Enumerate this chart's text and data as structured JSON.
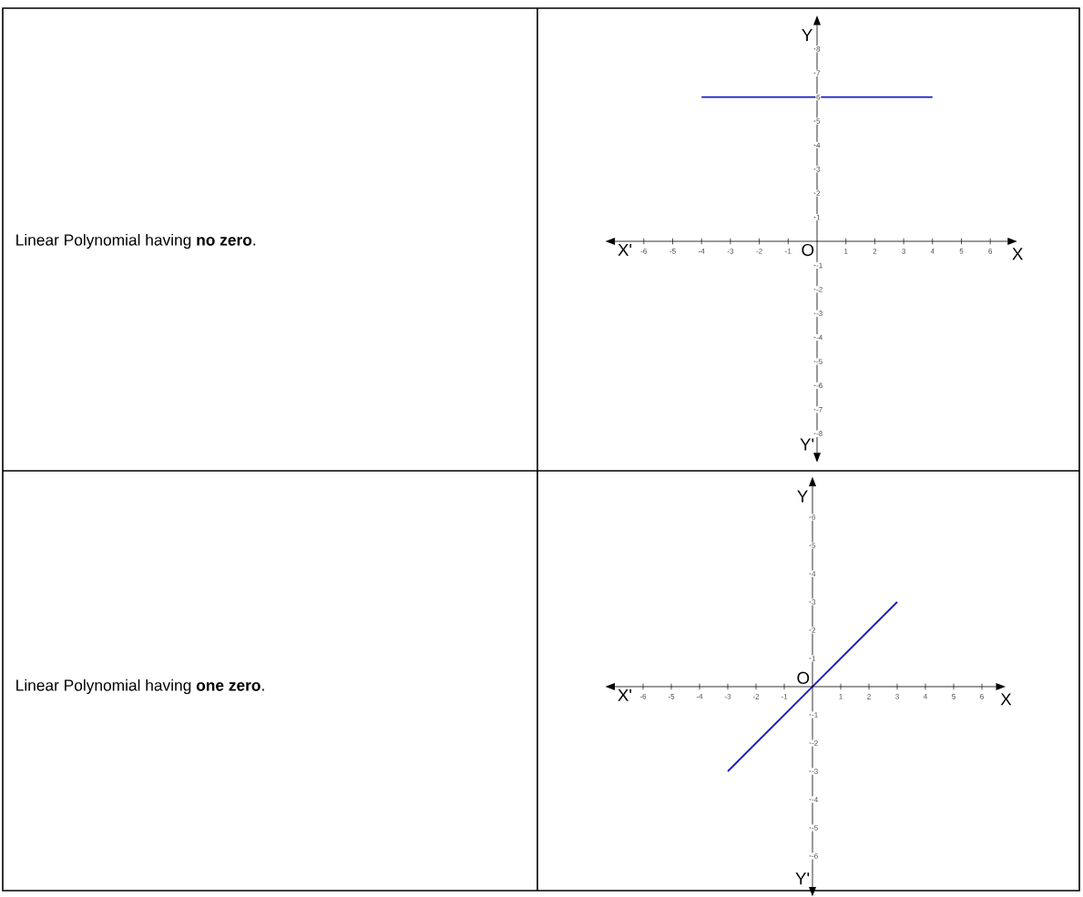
{
  "chart_data": [
    {
      "type": "line",
      "annotations": [
        "Linear Polynomial having **no zero**.",
        "X'",
        "Y'",
        "O"
      ],
      "xlabel": "X",
      "ylabel": "Y",
      "x": [
        -4,
        4
      ],
      "values": [
        6,
        6
      ],
      "color": "#1a1acc",
      "marker": "none",
      "line_style": "solid",
      "grid": false,
      "legend": false,
      "xlim": [
        -7,
        6.6
      ],
      "ylim": [
        -8.8,
        9
      ],
      "xticks": [
        -6,
        -5,
        -4,
        -3,
        -2,
        -1,
        1,
        2,
        3,
        4,
        5,
        6
      ],
      "yticks": [
        -8,
        -7,
        -6,
        -5,
        -4,
        -3,
        -2,
        -1,
        1,
        2,
        3,
        4,
        5,
        6,
        7,
        8
      ]
    },
    {
      "type": "line",
      "annotations": [
        "Linear Polynomial having **one zero**.",
        "X'",
        "Y'",
        "O"
      ],
      "xlabel": "X",
      "ylabel": "Y",
      "x": [
        -3,
        3
      ],
      "values": [
        -3,
        3
      ],
      "color": "#1a1acc",
      "marker": "none",
      "line_style": "solid",
      "grid": false,
      "legend": false,
      "xlim": [
        -7,
        6.5
      ],
      "ylim": [
        -7.1,
        7.1
      ],
      "xticks": [
        -6,
        -5,
        -4,
        -3,
        -2,
        -1,
        1,
        2,
        3,
        4,
        5,
        6
      ],
      "yticks": [
        -6,
        -5,
        -4,
        -3,
        -2,
        -1,
        1,
        2,
        3,
        4,
        5,
        6
      ]
    }
  ]
}
